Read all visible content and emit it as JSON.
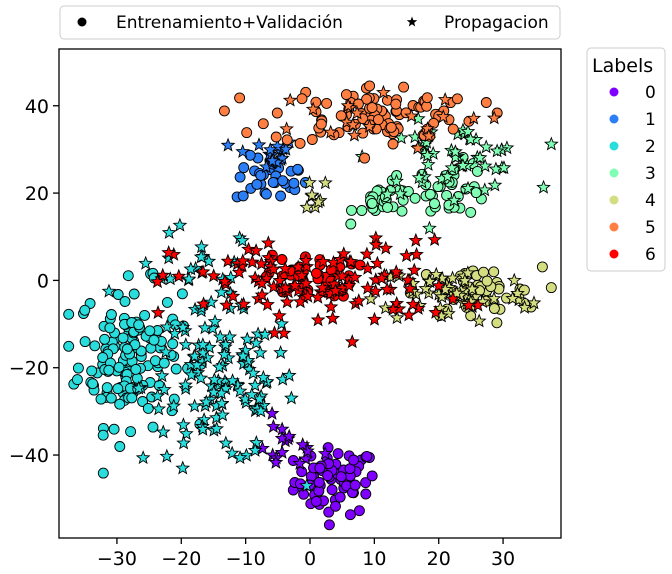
{
  "chart_data": {
    "type": "scatter",
    "title": "",
    "xlabel": "",
    "ylabel": "",
    "xlim": [
      -39,
      39
    ],
    "ylim": [
      -59,
      53
    ],
    "xticks": [
      -30,
      -20,
      -10,
      0,
      10,
      20,
      30
    ],
    "yticks": [
      -40,
      -20,
      0,
      20,
      40
    ],
    "tick_labels": {
      "x": [
        "−30",
        "−20",
        "−10",
        "0",
        "10",
        "20",
        "30"
      ],
      "y": [
        "−40",
        "−20",
        "0",
        "20",
        "40"
      ]
    },
    "grid": false,
    "marker_legend": {
      "placement": "top, above plot",
      "items": [
        {
          "label": "Entrenamiento+Validación",
          "marker": "circle"
        },
        {
          "label": "Propagacion",
          "marker": "star"
        }
      ]
    },
    "labels_legend": {
      "title": "Labels",
      "placement": "right, outside plot",
      "items": [
        {
          "label": "0",
          "color": "#7f00ff"
        },
        {
          "label": "1",
          "color": "#2c7ef7"
        },
        {
          "label": "2",
          "color": "#2adddd"
        },
        {
          "label": "3",
          "color": "#80ffb4"
        },
        {
          "label": "4",
          "color": "#d4dd80"
        },
        {
          "label": "5",
          "color": "#ff7e41"
        },
        {
          "label": "6",
          "color": "#ff0000"
        }
      ]
    },
    "clusters": [
      {
        "label": "0",
        "marker": "circle",
        "center": [
          4,
          -46
        ],
        "spread": [
          3.2,
          3.8
        ],
        "n": 70
      },
      {
        "label": "0",
        "marker": "star",
        "center": [
          -4,
          -38
        ],
        "spread": [
          3,
          3
        ],
        "n": 18
      },
      {
        "label": "1",
        "marker": "circle",
        "center": [
          -6,
          23
        ],
        "spread": [
          2.8,
          2.6
        ],
        "n": 32
      },
      {
        "label": "1",
        "marker": "star",
        "center": [
          -7,
          29
        ],
        "spread": [
          2.5,
          1.8
        ],
        "n": 18
      },
      {
        "label": "2",
        "marker": "circle",
        "center": [
          -28,
          -17
        ],
        "spread": [
          4,
          8
        ],
        "n": 150
      },
      {
        "label": "2",
        "marker": "star",
        "center": [
          -14,
          -24
        ],
        "spread": [
          6,
          9
        ],
        "n": 120
      },
      {
        "label": "2",
        "marker": "star",
        "center": [
          -18,
          2
        ],
        "spread": [
          5,
          5
        ],
        "n": 22
      },
      {
        "label": "3",
        "marker": "circle",
        "center": [
          12,
          18
        ],
        "spread": [
          2.5,
          2
        ],
        "n": 30
      },
      {
        "label": "3",
        "marker": "circle",
        "center": [
          22,
          21
        ],
        "spread": [
          3,
          3
        ],
        "n": 35
      },
      {
        "label": "3",
        "marker": "star",
        "center": [
          22,
          28
        ],
        "spread": [
          6,
          4
        ],
        "n": 55
      },
      {
        "label": "4",
        "marker": "circle",
        "center": [
          26,
          -3
        ],
        "spread": [
          5,
          3
        ],
        "n": 45
      },
      {
        "label": "4",
        "marker": "star",
        "center": [
          22,
          -3
        ],
        "spread": [
          6,
          3.5
        ],
        "n": 55
      },
      {
        "label": "4",
        "marker": "star",
        "center": [
          1,
          20
        ],
        "spread": [
          1.2,
          2.5
        ],
        "n": 8
      },
      {
        "label": "5",
        "marker": "circle",
        "center": [
          10,
          38
        ],
        "spread": [
          8,
          3.5
        ],
        "n": 95
      },
      {
        "label": "5",
        "marker": "star",
        "center": [
          5,
          36
        ],
        "spread": [
          10,
          3
        ],
        "n": 20
      },
      {
        "label": "6",
        "marker": "circle",
        "center": [
          0,
          1
        ],
        "spread": [
          3.5,
          2.5
        ],
        "n": 40
      },
      {
        "label": "6",
        "marker": "star",
        "center": [
          1,
          -1
        ],
        "spread": [
          11,
          5
        ],
        "n": 120
      }
    ]
  }
}
